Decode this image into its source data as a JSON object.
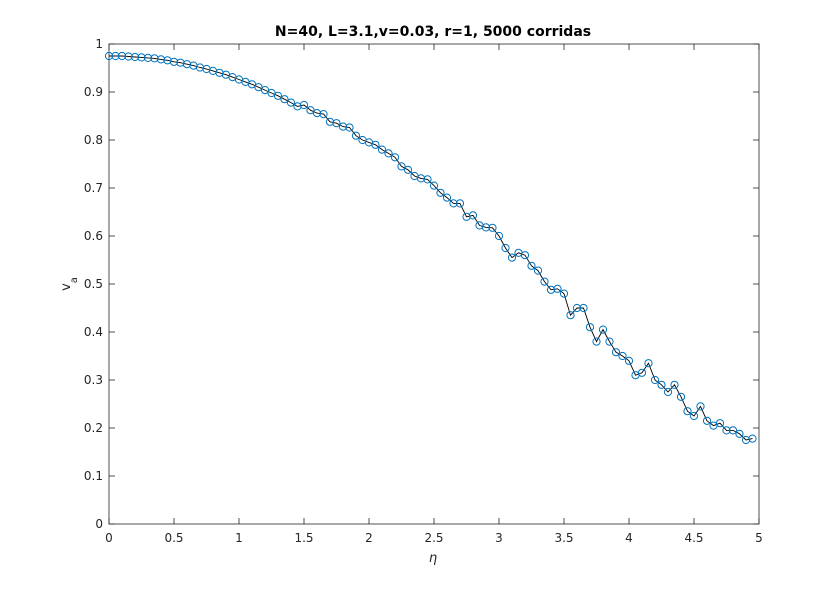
{
  "chart_data": {
    "type": "line",
    "title": "N=40, L=3.1,v=0.03, r=1, 5000 corridas",
    "xlabel": "η",
    "ylabel_main": "v",
    "ylabel_sub": "a",
    "xlim": [
      0,
      5
    ],
    "ylim": [
      0,
      1
    ],
    "xticks": [
      "0",
      "0.5",
      "1",
      "1.5",
      "2",
      "2.5",
      "3",
      "3.5",
      "4",
      "4.5",
      "5"
    ],
    "yticks": [
      "0",
      "0.1",
      "0.2",
      "0.3",
      "0.4",
      "0.5",
      "0.6",
      "0.7",
      "0.8",
      "0.9",
      "1"
    ],
    "grid": false,
    "marker": "circle",
    "line_color": "#000000",
    "marker_color": "#0072bd",
    "series": [
      {
        "x": [
          0,
          0.05,
          0.1,
          0.15,
          0.2,
          0.25,
          0.3,
          0.35,
          0.4,
          0.45,
          0.5,
          0.55,
          0.6,
          0.65,
          0.7,
          0.75,
          0.8,
          0.85,
          0.9,
          0.95,
          1,
          1.05,
          1.1,
          1.15,
          1.2,
          1.25,
          1.3,
          1.35,
          1.4,
          1.45,
          1.5,
          1.55,
          1.6,
          1.65,
          1.7,
          1.75,
          1.8,
          1.85,
          1.9,
          1.95,
          2,
          2.05,
          2.1,
          2.15,
          2.2,
          2.25,
          2.3,
          2.35,
          2.4,
          2.45,
          2.5,
          2.55,
          2.6,
          2.65,
          2.7,
          2.75,
          2.8,
          2.85,
          2.9,
          2.95,
          3,
          3.05,
          3.1,
          3.15,
          3.2,
          3.25,
          3.3,
          3.35,
          3.4,
          3.45,
          3.5,
          3.55,
          3.6,
          3.65,
          3.7,
          3.75,
          3.8,
          3.85,
          3.9,
          3.95,
          4,
          4.05,
          4.1,
          4.15,
          4.2,
          4.25,
          4.3,
          4.35,
          4.4,
          4.45,
          4.5,
          4.55,
          4.6,
          4.65,
          4.7,
          4.75,
          4.8,
          4.85,
          4.9,
          4.95
        ],
        "values": [
          0.975,
          0.975,
          0.975,
          0.974,
          0.973,
          0.972,
          0.971,
          0.97,
          0.968,
          0.966,
          0.963,
          0.961,
          0.958,
          0.955,
          0.951,
          0.948,
          0.944,
          0.94,
          0.936,
          0.931,
          0.926,
          0.921,
          0.916,
          0.91,
          0.904,
          0.898,
          0.892,
          0.885,
          0.878,
          0.87,
          0.873,
          0.862,
          0.856,
          0.854,
          0.838,
          0.835,
          0.828,
          0.826,
          0.809,
          0.8,
          0.795,
          0.79,
          0.78,
          0.772,
          0.764,
          0.745,
          0.738,
          0.725,
          0.72,
          0.718,
          0.705,
          0.69,
          0.68,
          0.668,
          0.668,
          0.64,
          0.643,
          0.622,
          0.618,
          0.617,
          0.6,
          0.575,
          0.555,
          0.565,
          0.56,
          0.538,
          0.528,
          0.505,
          0.488,
          0.49,
          0.48,
          0.435,
          0.45,
          0.45,
          0.41,
          0.38,
          0.405,
          0.38,
          0.358,
          0.35,
          0.34,
          0.31,
          0.315,
          0.335,
          0.3,
          0.29,
          0.275,
          0.29,
          0.265,
          0.235,
          0.225,
          0.245,
          0.215,
          0.205,
          0.21,
          0.195,
          0.195,
          0.188,
          0.175,
          0.178
        ]
      }
    ]
  }
}
